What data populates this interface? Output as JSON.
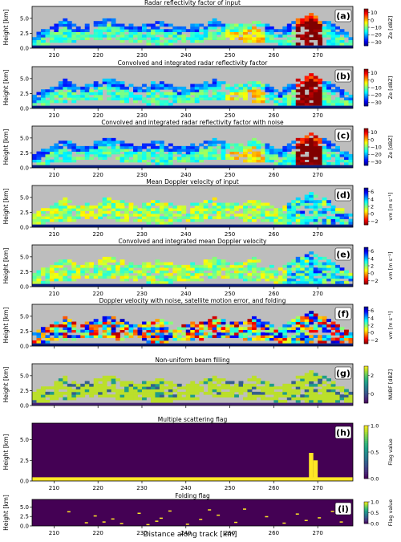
{
  "figure": {
    "xlabel": "Distance along track [km]",
    "ylabel": "Height [km]",
    "x_ticks": [
      "210",
      "220",
      "230",
      "240",
      "250",
      "260",
      "270"
    ],
    "colors": {
      "bg_gray": "#bdbdbd",
      "dark_purple": "#440154",
      "yellow": "#fde725",
      "green": "#21918c",
      "surface": "#0b1d7a"
    }
  },
  "chart_data": [
    {
      "type": "heatmap",
      "letter": "(a)",
      "title": "Radar reflectivity factor of input",
      "xlabel": "",
      "ylabel": "Height [km]",
      "xlim": [
        205,
        278
      ],
      "ylim": [
        0,
        7
      ],
      "y_ticks": [
        "0.0",
        "2.5",
        "5.0"
      ],
      "colorbar": {
        "label": "Ze [dBZ]",
        "ticks": [
          "10",
          "0",
          "−10",
          "−20",
          "−30"
        ],
        "range": [
          -35,
          15
        ],
        "cmap": "jet"
      },
      "features": [
        {
          "x": 268,
          "z": 2.5,
          "value": 12
        },
        {
          "x": 255,
          "z": 3.0,
          "value": -5
        },
        {
          "x": 232,
          "z": 3.2,
          "value": -18
        }
      ]
    },
    {
      "type": "heatmap",
      "letter": "(b)",
      "title": "Convolved and integrated radar reflectivity factor",
      "xlabel": "",
      "ylabel": "Height [km]",
      "xlim": [
        205,
        278
      ],
      "ylim": [
        0,
        7
      ],
      "y_ticks": [
        "0.0",
        "2.5",
        "5.0"
      ],
      "colorbar": {
        "label": "Ze [dBZ]",
        "ticks": [
          "10",
          "0",
          "−10",
          "−20",
          "−30"
        ],
        "range": [
          -35,
          15
        ],
        "cmap": "jet"
      }
    },
    {
      "type": "heatmap",
      "letter": "(c)",
      "title": "Convolved and integrated radar reflectivity factor with noise",
      "xlabel": "",
      "ylabel": "Height [km]",
      "xlim": [
        205,
        278
      ],
      "ylim": [
        0,
        7
      ],
      "y_ticks": [
        "0.0",
        "2.5",
        "5.0"
      ],
      "colorbar": {
        "label": "Ze [dBZ]",
        "ticks": [
          "10",
          "0",
          "−10",
          "−20",
          "−30"
        ],
        "range": [
          -35,
          15
        ],
        "cmap": "jet"
      }
    },
    {
      "type": "heatmap",
      "letter": "(d)",
      "title": "Mean Doppler velocity of input",
      "xlabel": "",
      "ylabel": "Height [km]",
      "xlim": [
        205,
        278
      ],
      "ylim": [
        0,
        7
      ],
      "y_ticks": [
        "0.0",
        "2.5",
        "5.0"
      ],
      "colorbar": {
        "label": "vm [m s⁻¹]",
        "ticks": [
          "6",
          "4",
          "2",
          "0",
          "−2"
        ],
        "range": [
          -3,
          7
        ],
        "cmap": "jet_r"
      }
    },
    {
      "type": "heatmap",
      "letter": "(e)",
      "title": "Convolved and integrated mean Doppler velocity",
      "xlabel": "",
      "ylabel": "Height [km]",
      "xlim": [
        205,
        278
      ],
      "ylim": [
        0,
        7
      ],
      "y_ticks": [
        "0.0",
        "2.5",
        "5.0"
      ],
      "colorbar": {
        "label": "vm [m s⁻¹]",
        "ticks": [
          "6",
          "4",
          "2",
          "0",
          "−2"
        ],
        "range": [
          -3,
          7
        ],
        "cmap": "jet_r"
      }
    },
    {
      "type": "heatmap",
      "letter": "(f)",
      "title": "Doppler velocity with noise, satellite motion error, and folding",
      "xlabel": "",
      "ylabel": "Height [km]",
      "xlim": [
        205,
        278
      ],
      "ylim": [
        0,
        7
      ],
      "y_ticks": [
        "0.0",
        "2.5",
        "5.0"
      ],
      "colorbar": {
        "label": "vm [m s⁻¹]",
        "ticks": [
          "6",
          "4",
          "2",
          "0",
          "−2"
        ],
        "range": [
          -3,
          7
        ],
        "cmap": "jet_r"
      }
    },
    {
      "type": "heatmap",
      "letter": "(g)",
      "title": "Non-uniform beam filling",
      "xlabel": "",
      "ylabel": "Height [km]",
      "xlim": [
        205,
        278
      ],
      "ylim": [
        0,
        7
      ],
      "y_ticks": [
        "0.0",
        "2.5",
        "5.0"
      ],
      "colorbar": {
        "label": "NUBF [dBZ]",
        "ticks": [
          "2",
          "0"
        ],
        "range": [
          -1,
          3
        ],
        "cmap": "viridis"
      }
    },
    {
      "type": "heatmap",
      "letter": "(h)",
      "title": "Multiple scattering flag",
      "xlabel": "",
      "ylabel": "Height [km]",
      "xlim": [
        205,
        278
      ],
      "ylim": [
        0,
        7
      ],
      "y_ticks": [
        "0.0",
        "2.5",
        "5.0"
      ],
      "colorbar": {
        "label": "Flag value",
        "ticks": [
          "1.0",
          "0.5",
          "0.0"
        ],
        "range": [
          0,
          1
        ],
        "cmap": "viridis"
      },
      "flag_columns": [
        {
          "x": 268,
          "z_top": 3.4,
          "value": 1
        },
        {
          "x": 269,
          "z_top": 2.5,
          "value": 1
        }
      ]
    },
    {
      "type": "heatmap",
      "letter": "(i)",
      "title": "Folding flag",
      "xlabel": "Distance along track [km]",
      "ylabel": "Height [km]",
      "xlim": [
        205,
        278
      ],
      "ylim": [
        0,
        7
      ],
      "y_ticks": [
        "0.0",
        "2.5",
        "5.0"
      ],
      "colorbar": {
        "label": "Flag value",
        "ticks": [
          "1.0",
          "0.5",
          "0.0"
        ],
        "range": [
          0,
          1
        ],
        "cmap": "viridis"
      },
      "flagged_points": [
        [
          213,
          3.9
        ],
        [
          217,
          1.0
        ],
        [
          221,
          1.2
        ],
        [
          223,
          2.0
        ],
        [
          225,
          0.8
        ],
        [
          229,
          3.5
        ],
        [
          233,
          1.4
        ],
        [
          234,
          2.2
        ],
        [
          236,
          4.1
        ],
        [
          240,
          0.6
        ],
        [
          243,
          1.9
        ],
        [
          247,
          3.0
        ],
        [
          251,
          1.1
        ],
        [
          253,
          4.6
        ],
        [
          258,
          2.6
        ],
        [
          262,
          0.9
        ],
        [
          265,
          3.3
        ],
        [
          267,
          1.6
        ],
        [
          270,
          2.3
        ],
        [
          273,
          4.0
        ],
        [
          275,
          1.2
        ],
        [
          219,
          2.8
        ],
        [
          231,
          0.5
        ],
        [
          245,
          4.4
        ]
      ]
    }
  ]
}
